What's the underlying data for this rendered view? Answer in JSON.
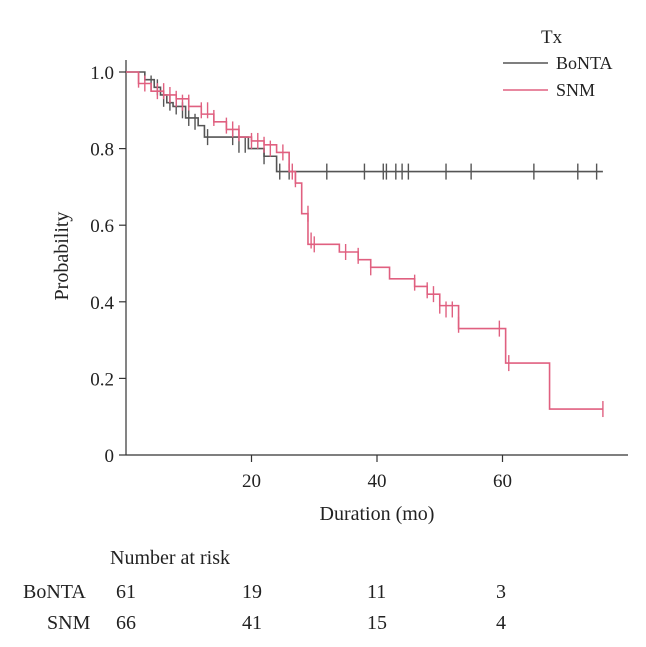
{
  "chart_data": {
    "type": "line",
    "subtype": "kaplan-meier",
    "xlabel": "Duration (mo)",
    "ylabel": "Probability",
    "xlim": [
      0,
      80
    ],
    "ylim": [
      0,
      1.0
    ],
    "xticks": [
      20,
      40,
      60
    ],
    "xtick_labels": [
      "20",
      "40",
      "60"
    ],
    "yticks": [
      0,
      0.2,
      0.4,
      0.6,
      0.8,
      1.0
    ],
    "ytick_labels": [
      "0",
      "0.2",
      "0.4",
      "0.6",
      "0.8",
      "1.0"
    ],
    "legend": {
      "title": "Tx",
      "position": "top-right"
    },
    "series": [
      {
        "name": "BoNTA",
        "color": "#555555",
        "steps": [
          [
            0,
            1.0
          ],
          [
            3,
            0.98
          ],
          [
            4.5,
            0.96
          ],
          [
            5.5,
            0.94
          ],
          [
            6.5,
            0.92
          ],
          [
            7.5,
            0.91
          ],
          [
            9.5,
            0.88
          ],
          [
            11.5,
            0.86
          ],
          [
            12.5,
            0.83
          ],
          [
            16.5,
            0.83
          ],
          [
            19.5,
            0.8
          ],
          [
            22,
            0.78
          ],
          [
            24,
            0.74
          ],
          [
            76,
            0.74
          ]
        ],
        "censor": [
          [
            4,
            0.97
          ],
          [
            5,
            0.96
          ],
          [
            6,
            0.93
          ],
          [
            7,
            0.92
          ],
          [
            8,
            0.91
          ],
          [
            9,
            0.9
          ],
          [
            10,
            0.88
          ],
          [
            11,
            0.87
          ],
          [
            13,
            0.83
          ],
          [
            17,
            0.83
          ],
          [
            18,
            0.81
          ],
          [
            19,
            0.81
          ],
          [
            22,
            0.78
          ],
          [
            24.5,
            0.74
          ],
          [
            26,
            0.74
          ],
          [
            32,
            0.74
          ],
          [
            38,
            0.74
          ],
          [
            41,
            0.74
          ],
          [
            41.5,
            0.74
          ],
          [
            43,
            0.74
          ],
          [
            44,
            0.74
          ],
          [
            45,
            0.74
          ],
          [
            51,
            0.74
          ],
          [
            55,
            0.74
          ],
          [
            65,
            0.74
          ],
          [
            72,
            0.74
          ],
          [
            75,
            0.74
          ]
        ]
      },
      {
        "name": "SNM",
        "color": "#e06080",
        "steps": [
          [
            0,
            1.0
          ],
          [
            2,
            0.97
          ],
          [
            4,
            0.95
          ],
          [
            6,
            0.94
          ],
          [
            8,
            0.93
          ],
          [
            10,
            0.91
          ],
          [
            12,
            0.89
          ],
          [
            14,
            0.87
          ],
          [
            16,
            0.85
          ],
          [
            18,
            0.83
          ],
          [
            20,
            0.82
          ],
          [
            22,
            0.81
          ],
          [
            24,
            0.79
          ],
          [
            26,
            0.74
          ],
          [
            27,
            0.71
          ],
          [
            28,
            0.63
          ],
          [
            29,
            0.55
          ],
          [
            34,
            0.53
          ],
          [
            37,
            0.51
          ],
          [
            39,
            0.49
          ],
          [
            42,
            0.46
          ],
          [
            46,
            0.44
          ],
          [
            48,
            0.42
          ],
          [
            50,
            0.39
          ],
          [
            53,
            0.33
          ],
          [
            59,
            0.33
          ],
          [
            60.5,
            0.24
          ],
          [
            67.5,
            0.12
          ],
          [
            76,
            0.12
          ]
        ],
        "censor": [
          [
            2,
            0.98
          ],
          [
            3,
            0.97
          ],
          [
            5,
            0.95
          ],
          [
            6,
            0.95
          ],
          [
            7,
            0.94
          ],
          [
            8,
            0.93
          ],
          [
            9,
            0.92
          ],
          [
            10,
            0.92
          ],
          [
            12,
            0.9
          ],
          [
            13,
            0.9
          ],
          [
            14,
            0.88
          ],
          [
            16,
            0.86
          ],
          [
            17,
            0.85
          ],
          [
            18,
            0.84
          ],
          [
            20,
            0.82
          ],
          [
            21,
            0.82
          ],
          [
            22,
            0.81
          ],
          [
            23,
            0.8
          ],
          [
            25,
            0.79
          ],
          [
            26,
            0.77
          ],
          [
            26.5,
            0.74
          ],
          [
            27,
            0.72
          ],
          [
            29,
            0.63
          ],
          [
            29.5,
            0.56
          ],
          [
            30,
            0.55
          ],
          [
            35,
            0.53
          ],
          [
            37,
            0.52
          ],
          [
            39,
            0.49
          ],
          [
            46,
            0.45
          ],
          [
            48,
            0.43
          ],
          [
            49,
            0.42
          ],
          [
            50,
            0.39
          ],
          [
            51,
            0.38
          ],
          [
            52,
            0.38
          ],
          [
            53,
            0.34
          ],
          [
            59.5,
            0.33
          ],
          [
            61,
            0.24
          ],
          [
            76,
            0.12
          ]
        ]
      }
    ],
    "risk_table": {
      "title": "Number at risk",
      "columns_x": [
        0,
        20,
        40,
        60
      ],
      "rows": [
        {
          "label": "BoNTA",
          "values": [
            "61",
            "19",
            "11",
            "3"
          ]
        },
        {
          "label": "SNM",
          "values": [
            "66",
            "41",
            "15",
            "4"
          ]
        }
      ]
    }
  }
}
